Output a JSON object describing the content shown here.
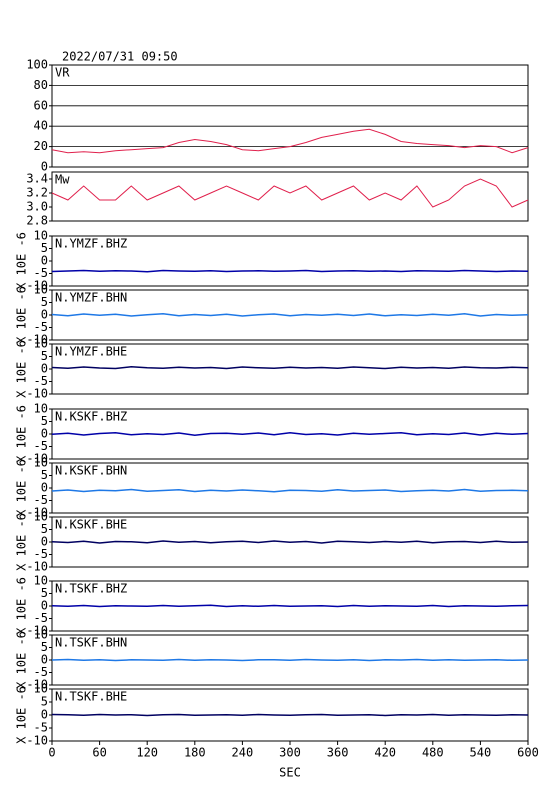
{
  "chart_data": [
    {
      "type": "line",
      "title": "2022/07/31 09:50",
      "x": [
        0,
        20,
        40,
        60,
        80,
        100,
        120,
        140,
        160,
        180,
        200,
        220,
        240,
        260,
        280,
        300,
        320,
        340,
        360,
        380,
        400,
        420,
        440,
        460,
        480,
        500,
        520,
        540,
        560,
        580,
        600
      ],
      "xlim": [
        0,
        600
      ],
      "ylim": [
        0,
        100
      ],
      "yticks": [
        0,
        20,
        40,
        60,
        80,
        100
      ],
      "grid": true,
      "series": [
        {
          "name": "VR",
          "color": "#e0204c",
          "values": [
            17,
            14,
            15,
            14,
            16,
            17,
            18,
            19,
            24,
            27,
            25,
            22,
            17,
            16,
            18,
            20,
            24,
            29,
            32,
            35,
            37,
            32,
            25,
            23,
            22,
            21,
            19,
            21,
            20,
            14,
            19
          ]
        }
      ]
    },
    {
      "type": "line",
      "x": [
        0,
        20,
        40,
        60,
        80,
        100,
        120,
        140,
        160,
        180,
        200,
        220,
        240,
        260,
        280,
        300,
        320,
        340,
        360,
        380,
        400,
        420,
        440,
        460,
        480,
        500,
        520,
        540,
        560,
        580,
        600
      ],
      "xlim": [
        0,
        600
      ],
      "ylim": [
        2.8,
        3.5
      ],
      "yticks": [
        2.8,
        {
          "value": 3,
          "label": "3.0"
        },
        3.2,
        3.4
      ],
      "grid": false,
      "series": [
        {
          "name": "Mw",
          "color": "#e0204c",
          "values": [
            3.2,
            3.1,
            3.3,
            3.1,
            3.1,
            3.3,
            3.1,
            3.2,
            3.3,
            3.1,
            3.2,
            3.3,
            3.2,
            3.1,
            3.3,
            3.2,
            3.3,
            3.1,
            3.2,
            3.3,
            3.1,
            3.2,
            3.1,
            3.3,
            3.0,
            3.1,
            3.3,
            3.4,
            3.3,
            3.0,
            3.1
          ]
        }
      ]
    },
    {
      "type": "line",
      "ylabel": "X 10E -6",
      "x": [
        0,
        20,
        40,
        60,
        80,
        100,
        120,
        140,
        160,
        180,
        200,
        220,
        240,
        260,
        280,
        300,
        320,
        340,
        360,
        380,
        400,
        420,
        440,
        460,
        480,
        500,
        520,
        540,
        560,
        580,
        600
      ],
      "xlim": [
        0,
        600
      ],
      "ylim": [
        -10,
        10
      ],
      "yticks": [
        -10,
        -5,
        0,
        5,
        10
      ],
      "grid": false,
      "series": [
        {
          "name": "N.YMZF.BHZ",
          "color": "#0000a8",
          "values": [
            -4.2,
            -4,
            -3.8,
            -4.1,
            -3.9,
            -4,
            -4.3,
            -3.8,
            -4,
            -4.1,
            -3.9,
            -4.2,
            -4,
            -3.9,
            -4.1,
            -4,
            -3.8,
            -4.2,
            -4,
            -3.9,
            -4.1,
            -4,
            -4.2,
            -3.9,
            -4,
            -4.1,
            -3.8,
            -4,
            -4.2,
            -4,
            -4.1
          ]
        }
      ]
    },
    {
      "type": "line",
      "ylabel": "X 10E -6",
      "x": [
        0,
        20,
        40,
        60,
        80,
        100,
        120,
        140,
        160,
        180,
        200,
        220,
        240,
        260,
        280,
        300,
        320,
        340,
        360,
        380,
        400,
        420,
        440,
        460,
        480,
        500,
        520,
        540,
        560,
        580,
        600
      ],
      "xlim": [
        0,
        600
      ],
      "ylim": [
        -10,
        10
      ],
      "yticks": [
        -10,
        -5,
        0,
        5,
        10
      ],
      "grid": false,
      "series": [
        {
          "name": "N.YMZF.BHN",
          "color": "#1e78e6",
          "values": [
            0.2,
            -0.3,
            0.4,
            -0.1,
            0.3,
            -0.4,
            0.1,
            0.5,
            -0.3,
            0.2,
            -0.2,
            0.3,
            -0.4,
            0.1,
            0.4,
            -0.3,
            0.2,
            -0.1,
            0.3,
            -0.2,
            0.4,
            -0.3,
            0.1,
            -0.2,
            0.3,
            -0.1,
            0.5,
            -0.4,
            0.2,
            -0.1,
            0.1
          ]
        }
      ]
    },
    {
      "type": "line",
      "ylabel": "X 10E -6",
      "x": [
        0,
        20,
        40,
        60,
        80,
        100,
        120,
        140,
        160,
        180,
        200,
        220,
        240,
        260,
        280,
        300,
        320,
        340,
        360,
        380,
        400,
        420,
        440,
        460,
        480,
        500,
        520,
        540,
        560,
        580,
        600
      ],
      "xlim": [
        0,
        600
      ],
      "ylim": [
        -10,
        10
      ],
      "yticks": [
        -10,
        -5,
        0,
        5,
        10
      ],
      "grid": false,
      "series": [
        {
          "name": "N.YMZF.BHE",
          "color": "#000060",
          "values": [
            0.6,
            0.3,
            0.8,
            0.4,
            0.2,
            0.9,
            0.5,
            0.3,
            0.7,
            0.4,
            0.6,
            0.2,
            0.8,
            0.5,
            0.3,
            0.7,
            0.4,
            0.6,
            0.3,
            0.8,
            0.5,
            0.2,
            0.7,
            0.4,
            0.6,
            0.3,
            0.8,
            0.5,
            0.4,
            0.7,
            0.5
          ]
        }
      ]
    },
    {
      "type": "line",
      "ylabel": "X 10E -6",
      "x": [
        0,
        20,
        40,
        60,
        80,
        100,
        120,
        140,
        160,
        180,
        200,
        220,
        240,
        260,
        280,
        300,
        320,
        340,
        360,
        380,
        400,
        420,
        440,
        460,
        480,
        500,
        520,
        540,
        560,
        580,
        600
      ],
      "xlim": [
        0,
        600
      ],
      "ylim": [
        -10,
        10
      ],
      "yticks": [
        -10,
        -5,
        0,
        5,
        10
      ],
      "grid": false,
      "series": [
        {
          "name": "N.KSKF.BHZ",
          "color": "#0000a8",
          "values": [
            -0.1,
            0.3,
            -0.4,
            0.2,
            0.5,
            -0.3,
            0.1,
            -0.2,
            0.4,
            -0.5,
            0.2,
            0.3,
            -0.1,
            0.4,
            -0.3,
            0.5,
            -0.2,
            0.1,
            -0.4,
            0.3,
            -0.1,
            0.2,
            0.5,
            -0.3,
            0.1,
            -0.2,
            0.4,
            -0.4,
            0.3,
            -0.1,
            0.2
          ]
        }
      ]
    },
    {
      "type": "line",
      "ylabel": "X 10E -6",
      "x": [
        0,
        20,
        40,
        60,
        80,
        100,
        120,
        140,
        160,
        180,
        200,
        220,
        240,
        260,
        280,
        300,
        320,
        340,
        360,
        380,
        400,
        420,
        440,
        460,
        480,
        500,
        520,
        540,
        560,
        580,
        600
      ],
      "xlim": [
        0,
        600
      ],
      "ylim": [
        -10,
        10
      ],
      "yticks": [
        -10,
        -5,
        0,
        5,
        10
      ],
      "grid": false,
      "series": [
        {
          "name": "N.KSKF.BHN",
          "color": "#1e78e6",
          "values": [
            -1.2,
            -0.8,
            -1.4,
            -0.9,
            -1.1,
            -0.6,
            -1.3,
            -1,
            -0.7,
            -1.4,
            -0.9,
            -1.2,
            -0.8,
            -1.1,
            -1.5,
            -0.9,
            -1,
            -1.3,
            -0.7,
            -1.2,
            -1,
            -0.8,
            -1.4,
            -1.1,
            -0.9,
            -1.2,
            -0.6,
            -1.3,
            -1,
            -0.9,
            -1.1
          ]
        }
      ]
    },
    {
      "type": "line",
      "ylabel": "X 10E -6",
      "x": [
        0,
        20,
        40,
        60,
        80,
        100,
        120,
        140,
        160,
        180,
        200,
        220,
        240,
        260,
        280,
        300,
        320,
        340,
        360,
        380,
        400,
        420,
        440,
        460,
        480,
        500,
        520,
        540,
        560,
        580,
        600
      ],
      "xlim": [
        0,
        600
      ],
      "ylim": [
        -10,
        10
      ],
      "yticks": [
        -10,
        -5,
        0,
        5,
        10
      ],
      "grid": false,
      "series": [
        {
          "name": "N.KSKF.BHE",
          "color": "#000060",
          "values": [
            0.1,
            -0.2,
            0.3,
            -0.4,
            0.2,
            0.1,
            -0.3,
            0.4,
            -0.1,
            0.2,
            -0.3,
            0.1,
            0.3,
            -0.2,
            0.4,
            -0.1,
            0.2,
            -0.4,
            0.3,
            0.1,
            -0.2,
            0.2,
            -0.1,
            0.3,
            -0.3,
            0.1,
            0.2,
            -0.2,
            0.3,
            -0.1,
            0
          ]
        }
      ]
    },
    {
      "type": "line",
      "ylabel": "X 10E -6",
      "x": [
        0,
        20,
        40,
        60,
        80,
        100,
        120,
        140,
        160,
        180,
        200,
        220,
        240,
        260,
        280,
        300,
        320,
        340,
        360,
        380,
        400,
        420,
        440,
        460,
        480,
        500,
        520,
        540,
        560,
        580,
        600
      ],
      "xlim": [
        0,
        600
      ],
      "ylim": [
        -10,
        10
      ],
      "yticks": [
        -10,
        -5,
        0,
        5,
        10
      ],
      "grid": false,
      "series": [
        {
          "name": "N.TSKF.BHZ",
          "color": "#0000a8",
          "values": [
            0.1,
            -0.1,
            0.2,
            -0.2,
            0.1,
            0,
            -0.1,
            0.2,
            -0.1,
            0.1,
            0.3,
            -0.2,
            0.1,
            -0.1,
            0.2,
            -0.1,
            0,
            0.1,
            -0.2,
            0.2,
            -0.1,
            0.1,
            0,
            -0.1,
            0.2,
            -0.2,
            0.1,
            0,
            -0.1,
            0.1,
            0.2
          ]
        }
      ]
    },
    {
      "type": "line",
      "ylabel": "X 10E -6",
      "x": [
        0,
        20,
        40,
        60,
        80,
        100,
        120,
        140,
        160,
        180,
        200,
        220,
        240,
        260,
        280,
        300,
        320,
        340,
        360,
        380,
        400,
        420,
        440,
        460,
        480,
        500,
        520,
        540,
        560,
        580,
        600
      ],
      "xlim": [
        0,
        600
      ],
      "ylim": [
        -10,
        10
      ],
      "yticks": [
        -10,
        -5,
        0,
        5,
        10
      ],
      "grid": false,
      "series": [
        {
          "name": "N.TSKF.BHN",
          "color": "#1e78e6",
          "values": [
            0,
            0.2,
            -0.1,
            0.1,
            -0.2,
            0.1,
            0,
            -0.1,
            0.2,
            -0.1,
            0.1,
            0,
            -0.2,
            0.1,
            0.1,
            -0.1,
            0.2,
            0,
            -0.1,
            0.1,
            -0.2,
            0.1,
            0,
            0.2,
            -0.1,
            0.1,
            -0.1,
            0,
            0.1,
            -0.1,
            0
          ]
        }
      ]
    },
    {
      "type": "line",
      "ylabel": "X 10E -6",
      "x": [
        0,
        20,
        40,
        60,
        80,
        100,
        120,
        140,
        160,
        180,
        200,
        220,
        240,
        260,
        280,
        300,
        320,
        340,
        360,
        380,
        400,
        420,
        440,
        460,
        480,
        500,
        520,
        540,
        560,
        580,
        600
      ],
      "xlim": [
        0,
        600
      ],
      "ylim": [
        -10,
        10
      ],
      "yticks": [
        -10,
        -5,
        0,
        5,
        10
      ],
      "grid": false,
      "xticks": [
        0,
        60,
        120,
        180,
        240,
        300,
        360,
        420,
        480,
        540,
        600
      ],
      "xlabel": "SEC",
      "series": [
        {
          "name": "N.TSKF.BHE",
          "color": "#000060",
          "values": [
            0.2,
            0.1,
            -0.1,
            0.2,
            0,
            0.1,
            -0.2,
            0.1,
            0.2,
            -0.1,
            0,
            0.1,
            -0.1,
            0.2,
            0,
            -0.1,
            0.1,
            0.2,
            -0.1,
            0,
            0.1,
            -0.2,
            0.1,
            0,
            0.2,
            -0.1,
            0.1,
            0,
            -0.1,
            0.1,
            0
          ]
        }
      ]
    }
  ]
}
